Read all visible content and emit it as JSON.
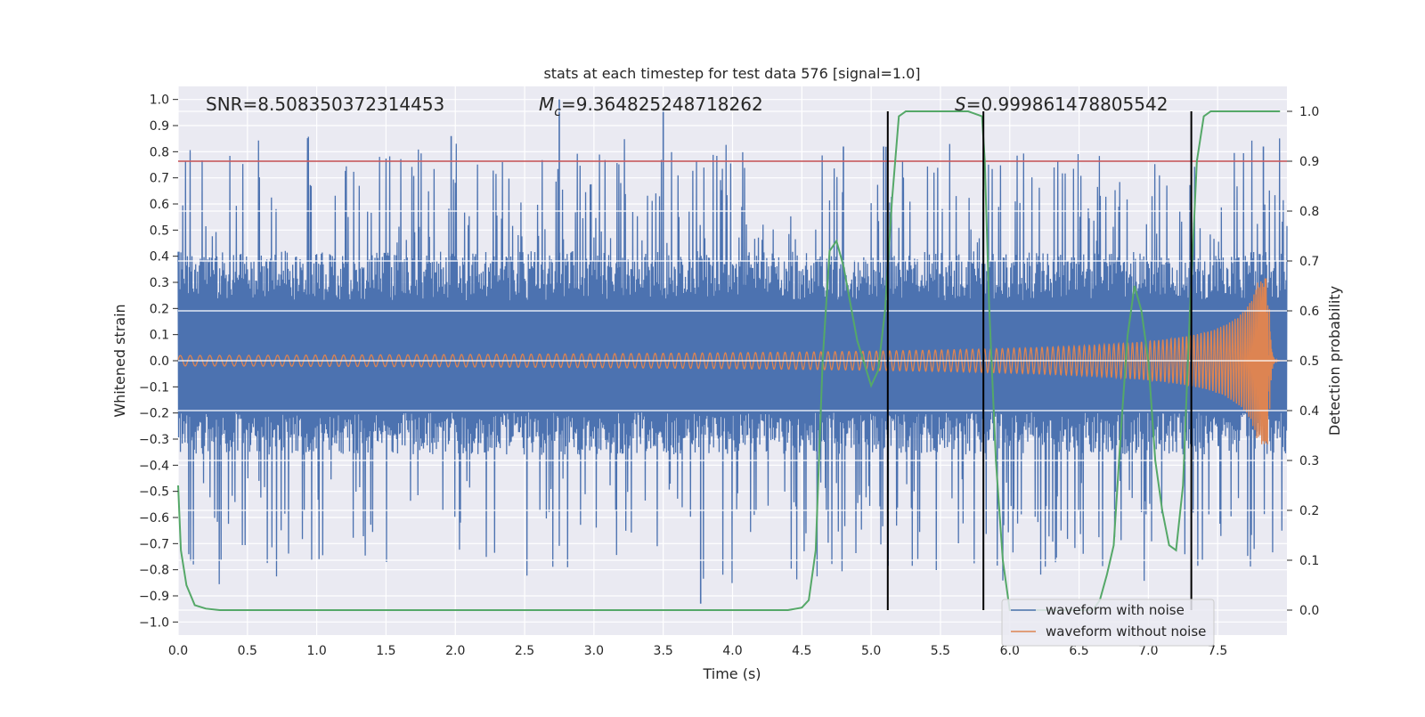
{
  "chart_data": {
    "type": "line",
    "title": "stats at each timestep for test data 576 [signal=1.0]",
    "xlabel": "Time (s)",
    "ylabel": "Whitened strain",
    "y2label": "Detection probability",
    "xlim": [
      0,
      8.0
    ],
    "ylim": [
      -1.05,
      1.05
    ],
    "y2lim": [
      -0.05,
      1.05
    ],
    "x_ticks": [
      "0.0",
      "0.5",
      "1.0",
      "1.5",
      "2.0",
      "2.5",
      "3.0",
      "3.5",
      "4.0",
      "4.5",
      "5.0",
      "5.5",
      "6.0",
      "6.5",
      "7.0",
      "7.5"
    ],
    "y_ticks": [
      "1.0",
      "0.9",
      "0.8",
      "0.7",
      "0.6",
      "0.5",
      "0.4",
      "0.3",
      "0.2",
      "0.1",
      "0.0",
      "−0.1",
      "−0.2",
      "−0.3",
      "−0.4",
      "−0.5",
      "−0.6",
      "−0.7",
      "−0.8",
      "−0.9",
      "−1.0"
    ],
    "y2_ticks": [
      "1.0",
      "0.9",
      "0.8",
      "0.7",
      "0.6",
      "0.5",
      "0.4",
      "0.3",
      "0.2",
      "0.1",
      "0.0"
    ],
    "grid": true,
    "legend_position": "lower-right",
    "annotations": {
      "snr": "SNR=8.508350372314453",
      "mc_symbol": "M",
      "mc_sub": "c",
      "mc_value": "=9.364825248718262",
      "s_symbol": "S",
      "s_value": "=0.999861478805542"
    },
    "threshold_line": {
      "y2": 0.9,
      "color": "#c44e52"
    },
    "vertical_lines_x": [
      5.12,
      5.81,
      7.31
    ],
    "series": [
      {
        "name": "waveform with noise",
        "axis": "left",
        "color": "#4c72b0",
        "envelope": {
          "abs_max": 1.0,
          "band_max": 0.42,
          "band_min": -0.36
        },
        "peaks_x": [
          1.97,
          2.75,
          3.5,
          3.77,
          4.8,
          5.09,
          7.83
        ],
        "peaks_y": [
          0.86,
          1.0,
          0.96,
          -0.93,
          0.82,
          0.82,
          0.82
        ]
      },
      {
        "name": "waveform without noise",
        "axis": "left",
        "color": "#dd8452",
        "start_amplitude": 0.02,
        "end_amplitude": 0.32,
        "merger_time": 7.87,
        "end_time": 8.0
      },
      {
        "axis": "right",
        "color": "#55a868",
        "x": [
          0.0,
          0.02,
          0.06,
          0.12,
          0.2,
          0.3,
          0.5,
          1.0,
          2.0,
          3.0,
          4.0,
          4.4,
          4.5,
          4.55,
          4.6,
          4.65,
          4.7,
          4.75,
          4.8,
          4.9,
          5.0,
          5.05,
          5.1,
          5.15,
          5.2,
          5.25,
          5.3,
          5.5,
          5.7,
          5.8,
          5.82,
          5.85,
          5.9,
          5.95,
          6.0,
          6.5,
          6.6,
          6.65,
          6.7,
          6.75,
          6.8,
          6.85,
          6.9,
          6.95,
          7.0,
          7.05,
          7.1,
          7.15,
          7.2,
          7.25,
          7.3,
          7.35,
          7.4,
          7.45,
          7.5,
          7.7,
          7.95
        ],
        "y": [
          0.25,
          0.12,
          0.05,
          0.01,
          0.003,
          0.0,
          0.0,
          0.0,
          0.0,
          0.0,
          0.0,
          0.0,
          0.005,
          0.02,
          0.12,
          0.5,
          0.72,
          0.74,
          0.69,
          0.54,
          0.45,
          0.48,
          0.6,
          0.82,
          0.99,
          1.0,
          1.0,
          1.0,
          1.0,
          0.99,
          0.9,
          0.62,
          0.3,
          0.1,
          0.0,
          0.0,
          0.0,
          0.02,
          0.07,
          0.13,
          0.35,
          0.55,
          0.65,
          0.6,
          0.5,
          0.3,
          0.2,
          0.13,
          0.12,
          0.25,
          0.6,
          0.9,
          0.99,
          1.0,
          1.0,
          1.0,
          1.0
        ]
      }
    ]
  }
}
